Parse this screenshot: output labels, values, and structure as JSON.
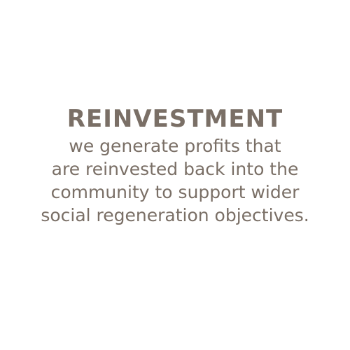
{
  "title": "REINVESTMENT",
  "body_lines": [
    "we generate profits that",
    "are reinvested back into the",
    "community to support wider",
    "social regeneration objectives."
  ],
  "colors": {
    "background": "#ffffff",
    "text": "#7a6f66"
  }
}
